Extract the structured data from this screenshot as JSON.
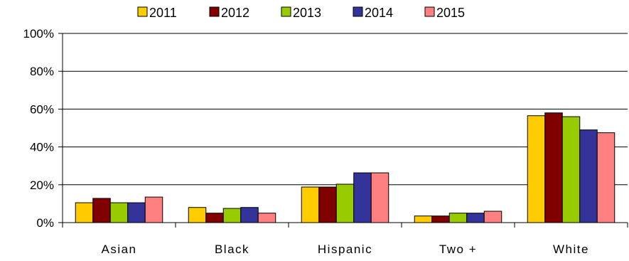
{
  "chart_data": {
    "type": "bar",
    "title": "",
    "xlabel": "",
    "ylabel": "",
    "categories": [
      "Asian",
      "Black",
      "Hispanic",
      "Two +",
      "White"
    ],
    "series": [
      {
        "name": "2011",
        "color": "#FFCC00",
        "values": [
          10.5,
          8.0,
          18.8,
          3.5,
          56.5
        ]
      },
      {
        "name": "2012",
        "color": "#800000",
        "values": [
          12.8,
          5.0,
          18.8,
          3.5,
          58.0
        ]
      },
      {
        "name": "2013",
        "color": "#99CC00",
        "values": [
          10.5,
          7.5,
          20.3,
          5.0,
          56.0
        ]
      },
      {
        "name": "2014",
        "color": "#333399",
        "values": [
          10.5,
          8.0,
          26.3,
          5.0,
          49.0
        ]
      },
      {
        "name": "2015",
        "color": "#FF8080",
        "values": [
          13.5,
          5.0,
          26.3,
          6.0,
          47.5
        ]
      }
    ],
    "ylim": [
      0,
      100
    ],
    "yticks": [
      0,
      20,
      40,
      60,
      80,
      100
    ],
    "ytick_labels": [
      "0%",
      "20%",
      "40%",
      "60%",
      "80%",
      "100%"
    ],
    "grid": true,
    "legend_position": "top"
  }
}
